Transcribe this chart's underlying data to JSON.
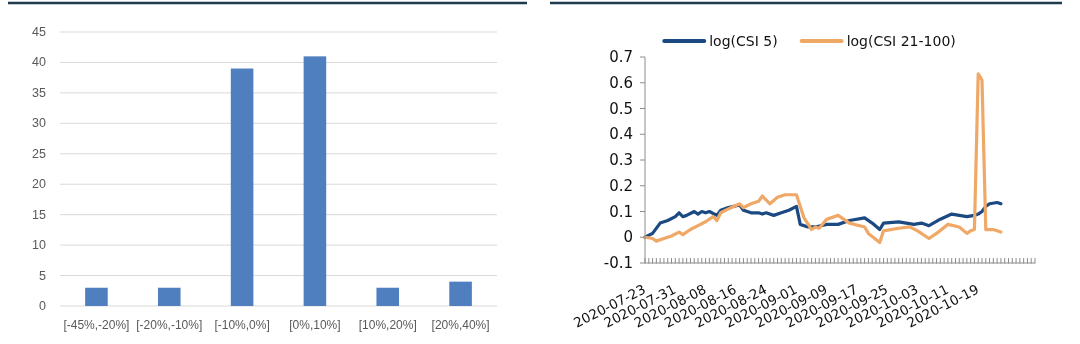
{
  "chart_data": [
    {
      "type": "bar",
      "categories": [
        "[-45%,-20%]",
        "[-20%,-10%]",
        "[-10%,0%]",
        "[0%,10%]",
        "[10%,20%]",
        "[20%,40%]"
      ],
      "values": [
        3,
        3,
        39,
        41,
        3,
        4
      ],
      "color": "#4f7fbf",
      "ylim": [
        0,
        45
      ],
      "yticks": [
        0,
        5,
        10,
        15,
        20,
        25,
        30,
        35,
        40,
        45
      ],
      "grid": "y"
    },
    {
      "type": "line",
      "legend": "top",
      "ylim": [
        -0.1,
        0.7
      ],
      "yticks": [
        -0.1,
        0,
        0.1,
        0.2,
        0.3,
        0.4,
        0.5,
        0.6,
        0.7
      ],
      "xlim": [
        "2020-07-23",
        "2020-11-03"
      ],
      "xticks": [
        "2020-07-23",
        {
          "value": "2020-07-24",
          "label": null
        },
        {
          "value": "2020-07-25",
          "label": null
        },
        {
          "value": "2020-07-26",
          "label": null
        },
        {
          "value": "2020-07-27",
          "label": null
        },
        {
          "value": "2020-07-28",
          "label": null
        },
        {
          "value": "2020-07-29",
          "label": null
        },
        {
          "value": "2020-07-30",
          "label": null
        },
        "2020-07-31",
        {
          "value": "2020-08-01",
          "label": null
        },
        {
          "value": "2020-08-02",
          "label": null
        },
        {
          "value": "2020-08-03",
          "label": null
        },
        {
          "value": "2020-08-04",
          "label": null
        },
        {
          "value": "2020-08-05",
          "label": null
        },
        {
          "value": "2020-08-06",
          "label": null
        },
        {
          "value": "2020-08-07",
          "label": null
        },
        "2020-08-08",
        {
          "value": "2020-08-09",
          "label": null
        },
        {
          "value": "2020-08-10",
          "label": null
        },
        {
          "value": "2020-08-11",
          "label": null
        },
        {
          "value": "2020-08-12",
          "label": null
        },
        {
          "value": "2020-08-13",
          "label": null
        },
        {
          "value": "2020-08-14",
          "label": null
        },
        {
          "value": "2020-08-15",
          "label": null
        },
        "2020-08-16",
        {
          "value": "2020-08-17",
          "label": null
        },
        {
          "value": "2020-08-18",
          "label": null
        },
        {
          "value": "2020-08-19",
          "label": null
        },
        {
          "value": "2020-08-20",
          "label": null
        },
        {
          "value": "2020-08-21",
          "label": null
        },
        {
          "value": "2020-08-22",
          "label": null
        },
        {
          "value": "2020-08-23",
          "label": null
        },
        "2020-08-24",
        {
          "value": "2020-08-25",
          "label": null
        },
        {
          "value": "2020-08-26",
          "label": null
        },
        {
          "value": "2020-08-27",
          "label": null
        },
        {
          "value": "2020-08-28",
          "label": null
        },
        {
          "value": "2020-08-29",
          "label": null
        },
        {
          "value": "2020-08-30",
          "label": null
        },
        {
          "value": "2020-08-31",
          "label": null
        },
        "2020-09-01",
        {
          "value": "2020-09-02",
          "label": null
        },
        {
          "value": "2020-09-03",
          "label": null
        },
        {
          "value": "2020-09-04",
          "label": null
        },
        {
          "value": "2020-09-05",
          "label": null
        },
        {
          "value": "2020-09-06",
          "label": null
        },
        {
          "value": "2020-09-07",
          "label": null
        },
        {
          "value": "2020-09-08",
          "label": null
        },
        "2020-09-09",
        {
          "value": "2020-09-10",
          "label": null
        },
        {
          "value": "2020-09-11",
          "label": null
        },
        {
          "value": "2020-09-12",
          "label": null
        },
        {
          "value": "2020-09-13",
          "label": null
        },
        {
          "value": "2020-09-14",
          "label": null
        },
        {
          "value": "2020-09-15",
          "label": null
        },
        {
          "value": "2020-09-16",
          "label": null
        },
        "2020-09-17",
        {
          "value": "2020-09-18",
          "label": null
        },
        {
          "value": "2020-09-19",
          "label": null
        },
        {
          "value": "2020-09-20",
          "label": null
        },
        {
          "value": "2020-09-21",
          "label": null
        },
        {
          "value": "2020-09-22",
          "label": null
        },
        {
          "value": "2020-09-23",
          "label": null
        },
        {
          "value": "2020-09-24",
          "label": null
        },
        "2020-09-25",
        {
          "value": "2020-09-26",
          "label": null
        },
        {
          "value": "2020-09-27",
          "label": null
        },
        {
          "value": "2020-09-28",
          "label": null
        },
        {
          "value": "2020-09-29",
          "label": null
        },
        {
          "value": "2020-09-30",
          "label": null
        },
        {
          "value": "2020-10-01",
          "label": null
        },
        {
          "value": "2020-10-02",
          "label": null
        },
        "2020-10-03",
        {
          "value": "2020-10-04",
          "label": null
        },
        {
          "value": "2020-10-05",
          "label": null
        },
        {
          "value": "2020-10-06",
          "label": null
        },
        {
          "value": "2020-10-07",
          "label": null
        },
        {
          "value": "2020-10-08",
          "label": null
        },
        {
          "value": "2020-10-09",
          "label": null
        },
        {
          "value": "2020-10-10",
          "label": null
        },
        "2020-10-11",
        {
          "value": "2020-10-12",
          "label": null
        },
        {
          "value": "2020-10-13",
          "label": null
        },
        {
          "value": "2020-10-14",
          "label": null
        },
        {
          "value": "2020-10-15",
          "label": null
        },
        {
          "value": "2020-10-16",
          "label": null
        },
        {
          "value": "2020-10-17",
          "label": null
        },
        {
          "value": "2020-10-18",
          "label": null
        },
        "2020-10-19",
        {
          "value": "2020-10-20",
          "label": null
        },
        {
          "value": "2020-10-21",
          "label": null
        },
        {
          "value": "2020-10-22",
          "label": null
        },
        {
          "value": "2020-10-23",
          "label": null
        },
        {
          "value": "2020-10-24",
          "label": null
        },
        {
          "value": "2020-10-25",
          "label": null
        },
        {
          "value": "2020-10-26",
          "label": null
        },
        {
          "value": "2020-10-27",
          "label": null
        },
        {
          "value": "2020-10-28",
          "label": null
        },
        {
          "value": "2020-10-29",
          "label": null
        },
        {
          "value": "2020-10-30",
          "label": null
        },
        {
          "value": "2020-10-31",
          "label": null
        },
        {
          "value": "2020-11-01",
          "label": null
        },
        {
          "value": "2020-11-02",
          "label": null
        },
        {
          "value": "2020-11-03",
          "label": null
        }
      ],
      "series": [
        {
          "name": "log(CSI 5)",
          "color": "#1b4a83",
          "x": [
            "2020-07-23",
            "2020-07-25",
            "2020-07-27",
            "2020-07-29",
            "2020-07-31",
            "2020-08-01",
            "2020-08-02",
            "2020-08-03",
            "2020-08-05",
            "2020-08-06",
            "2020-08-07",
            "2020-08-08",
            "2020-08-09",
            "2020-08-11",
            "2020-08-12",
            "2020-08-14",
            "2020-08-17",
            "2020-08-18",
            "2020-08-20",
            "2020-08-22",
            "2020-08-23",
            "2020-08-24",
            "2020-08-26",
            "2020-08-28",
            "2020-08-30",
            "2020-09-01",
            "2020-09-02",
            "2020-09-04",
            "2020-09-06",
            "2020-09-09",
            "2020-09-12",
            "2020-09-15",
            "2020-09-19",
            "2020-09-21",
            "2020-09-23",
            "2020-09-24",
            "2020-09-28",
            "2020-10-02",
            "2020-10-04",
            "2020-10-06",
            "2020-10-09",
            "2020-10-12",
            "2020-10-16",
            "2020-10-18",
            "2020-10-19",
            "2020-10-20",
            "2020-10-21",
            "2020-10-22",
            "2020-10-24",
            "2020-10-25"
          ],
          "values": [
            0,
            0.015,
            0.055,
            0.065,
            0.08,
            0.095,
            0.08,
            0.085,
            0.1,
            0.09,
            0.1,
            0.095,
            0.1,
            0.085,
            0.105,
            0.115,
            0.125,
            0.105,
            0.095,
            0.095,
            0.09,
            0.095,
            0.085,
            0.095,
            0.105,
            0.12,
            0.05,
            0.04,
            0.04,
            0.05,
            0.05,
            0.065,
            0.075,
            0.055,
            0.03,
            0.055,
            0.06,
            0.05,
            0.055,
            0.045,
            0.07,
            0.09,
            0.08,
            0.085,
            0.09,
            0.1,
            0.12,
            0.13,
            0.135,
            0.13
          ]
        },
        {
          "name": "log(CSI 21-100)",
          "color": "#f0a866",
          "x": [
            "2020-07-23",
            "2020-07-25",
            "2020-07-26",
            "2020-07-28",
            "2020-07-30",
            "2020-08-01",
            "2020-08-02",
            "2020-08-04",
            "2020-08-06",
            "2020-08-08",
            "2020-08-10",
            "2020-08-11",
            "2020-08-12",
            "2020-08-14",
            "2020-08-17",
            "2020-08-18",
            "2020-08-20",
            "2020-08-22",
            "2020-08-23",
            "2020-08-25",
            "2020-08-27",
            "2020-08-29",
            "2020-09-01",
            "2020-09-03",
            "2020-09-05",
            "2020-09-06",
            "2020-09-07",
            "2020-09-09",
            "2020-09-12",
            "2020-09-15",
            "2020-09-19",
            "2020-09-20",
            "2020-09-23",
            "2020-09-24",
            "2020-09-28",
            "2020-10-01",
            "2020-10-03",
            "2020-10-06",
            "2020-10-08",
            "2020-10-11",
            "2020-10-14",
            "2020-10-16",
            "2020-10-17",
            "2020-10-18",
            "2020-10-19",
            "2020-10-20",
            "2020-10-21",
            "2020-10-23",
            "2020-10-25"
          ],
          "values": [
            0,
            -0.005,
            -0.015,
            -0.005,
            0.005,
            0.02,
            0.01,
            0.03,
            0.045,
            0.06,
            0.08,
            0.065,
            0.095,
            0.11,
            0.13,
            0.115,
            0.13,
            0.14,
            0.16,
            0.13,
            0.155,
            0.165,
            0.165,
            0.075,
            0.03,
            0.04,
            0.035,
            0.07,
            0.085,
            0.055,
            0.04,
            0.015,
            -0.02,
            0.025,
            0.035,
            0.04,
            0.025,
            -0.005,
            0.015,
            0.05,
            0.04,
            0.015,
            0.025,
            0.03,
            0.635,
            0.61,
            0.03,
            0.03,
            0.02
          ]
        }
      ]
    }
  ]
}
